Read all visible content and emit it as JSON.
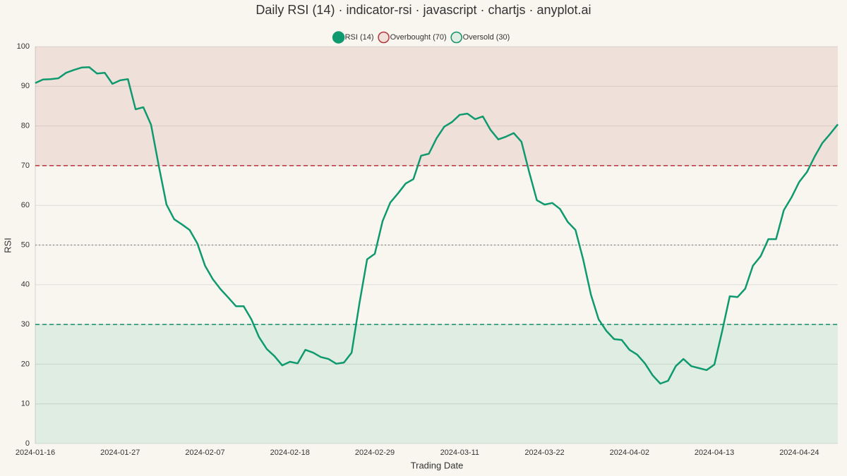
{
  "chart_data": {
    "type": "line",
    "title": "Daily RSI (14) · indicator-rsi · javascript · chartjs · anyplot.ai",
    "x_label": "Trading Date",
    "y_label": "RSI",
    "x": [
      "2024-01-16",
      "2024-01-17",
      "2024-01-18",
      "2024-01-19",
      "2024-01-20",
      "2024-01-21",
      "2024-01-22",
      "2024-01-23",
      "2024-01-24",
      "2024-01-25",
      "2024-01-26",
      "2024-01-27",
      "2024-01-28",
      "2024-01-29",
      "2024-01-30",
      "2024-01-31",
      "2024-02-01",
      "2024-02-02",
      "2024-02-03",
      "2024-02-04",
      "2024-02-05",
      "2024-02-06",
      "2024-02-07",
      "2024-02-08",
      "2024-02-09",
      "2024-02-10",
      "2024-02-11",
      "2024-02-12",
      "2024-02-13",
      "2024-02-14",
      "2024-02-15",
      "2024-02-16",
      "2024-02-17",
      "2024-02-18",
      "2024-02-19",
      "2024-02-20",
      "2024-02-21",
      "2024-02-22",
      "2024-02-23",
      "2024-02-24",
      "2024-02-25",
      "2024-02-26",
      "2024-02-27",
      "2024-02-28",
      "2024-02-29",
      "2024-03-01",
      "2024-03-02",
      "2024-03-03",
      "2024-03-04",
      "2024-03-05",
      "2024-03-06",
      "2024-03-07",
      "2024-03-08",
      "2024-03-09",
      "2024-03-10",
      "2024-03-11",
      "2024-03-12",
      "2024-03-13",
      "2024-03-14",
      "2024-03-15",
      "2024-03-16",
      "2024-03-17",
      "2024-03-18",
      "2024-03-19",
      "2024-03-20",
      "2024-03-21",
      "2024-03-22",
      "2024-03-23",
      "2024-03-24",
      "2024-03-25",
      "2024-03-26",
      "2024-03-27",
      "2024-03-28",
      "2024-03-29",
      "2024-03-30",
      "2024-03-31",
      "2024-04-01",
      "2024-04-02",
      "2024-04-03",
      "2024-04-04",
      "2024-04-05",
      "2024-04-06",
      "2024-04-07",
      "2024-04-08",
      "2024-04-09",
      "2024-04-10",
      "2024-04-11",
      "2024-04-12",
      "2024-04-13",
      "2024-04-14",
      "2024-04-15",
      "2024-04-16",
      "2024-04-17",
      "2024-04-18",
      "2024-04-19",
      "2024-04-20",
      "2024-04-21",
      "2024-04-22",
      "2024-04-23",
      "2024-04-24",
      "2024-04-25",
      "2024-04-26",
      "2024-04-27",
      "2024-04-28",
      "2024-04-29"
    ],
    "series": [
      {
        "name": "RSI (14)",
        "color": "#0e9a6e",
        "values": [
          90.8,
          91.7,
          91.8,
          92.0,
          93.4,
          94.1,
          94.7,
          94.8,
          93.2,
          93.4,
          90.6,
          91.5,
          91.8,
          84.2,
          84.7,
          80.3,
          70.0,
          60.2,
          56.5,
          55.2,
          53.8,
          50.4,
          44.8,
          41.4,
          38.9,
          36.8,
          34.6,
          34.6,
          31.3,
          26.8,
          23.8,
          22.0,
          19.7,
          20.6,
          20.2,
          23.6,
          22.9,
          21.8,
          21.3,
          20.1,
          20.4,
          22.9,
          35.3,
          46.4,
          47.8,
          56.0,
          60.7,
          63.0,
          65.5,
          66.6,
          72.5,
          73.0,
          76.9,
          79.8,
          81.0,
          82.8,
          83.1,
          81.7,
          82.4,
          79.0,
          76.6,
          77.3,
          78.2,
          76.0,
          68.4,
          61.3,
          60.2,
          60.6,
          59.1,
          55.8,
          53.8,
          46.4,
          37.5,
          31.3,
          28.4,
          26.3,
          26.1,
          23.6,
          22.4,
          20.2,
          17.2,
          15.1,
          15.8,
          19.5,
          21.3,
          19.5,
          19.0,
          18.5,
          19.9,
          28.2,
          37.1,
          36.9,
          39.0,
          44.8,
          47.2,
          51.5,
          51.5,
          58.8,
          62.0,
          65.9,
          68.4,
          72.3,
          75.7,
          78.0,
          80.4
        ]
      }
    ],
    "reference_lines": [
      {
        "name": "Overbought (70)",
        "value": 70,
        "color": "#b5343c",
        "fill": "#f0e0da"
      },
      {
        "name": "Oversold (30)",
        "value": 30,
        "color": "#14906a",
        "fill": "#e0ede3"
      }
    ],
    "midline": 50,
    "xticks": [
      "2024-01-16",
      "2024-01-27",
      "2024-02-07",
      "2024-02-18",
      "2024-02-29",
      "2024-03-11",
      "2024-03-22",
      "2024-04-02",
      "2024-04-13",
      "2024-04-24"
    ],
    "ylim": [
      0,
      100
    ],
    "yticks": [
      0,
      10,
      20,
      30,
      40,
      50,
      60,
      70,
      80,
      90,
      100
    ],
    "grid": true
  }
}
